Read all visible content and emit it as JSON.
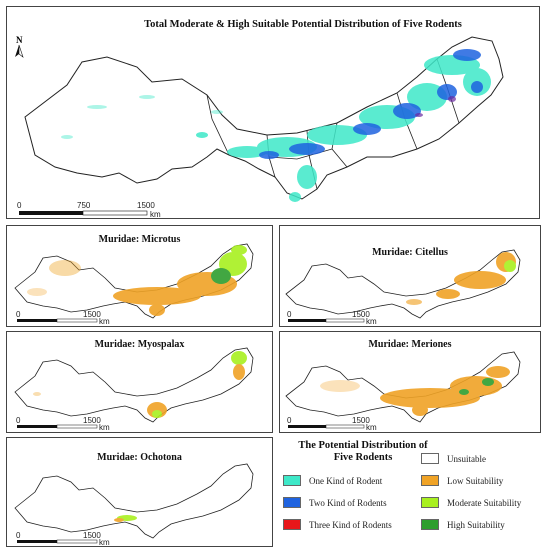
{
  "main_map": {
    "title": "Total Moderate & High Suitable Potential Distribution of Five Rodents",
    "north_label": "N",
    "scale_labels": [
      "0",
      "750",
      "1500"
    ],
    "scale_unit": "km"
  },
  "panels": [
    {
      "id": "microtus",
      "title": "Muridae: Microtus",
      "scale_labels": [
        "0",
        "1500"
      ],
      "scale_unit": "km"
    },
    {
      "id": "citellus",
      "title": "Muridae: Citellus",
      "scale_labels": [
        "0",
        "1500"
      ],
      "scale_unit": "km"
    },
    {
      "id": "myospalax",
      "title": "Muridae: Myospalax",
      "scale_labels": [
        "0",
        "1500"
      ],
      "scale_unit": "km"
    },
    {
      "id": "meriones",
      "title": "Muridae: Meriones",
      "scale_labels": [
        "0",
        "1500"
      ],
      "scale_unit": "km"
    },
    {
      "id": "ochotona",
      "title": "Muridae: Ochotona",
      "scale_labels": [
        "0",
        "1500"
      ],
      "scale_unit": "km"
    }
  ],
  "legend": {
    "title_line1": "The Potential Distribution of",
    "title_line2": "Five Rodents",
    "rodent_items": [
      {
        "label": "One Kind of Rodent",
        "color": "#3ee8c8"
      },
      {
        "label": "Two Kind of Rodents",
        "color": "#1f63e0"
      },
      {
        "label": "Three Kind of Rodents",
        "color": "#e8161a"
      }
    ],
    "suitability_items": [
      {
        "label": "Unsuitable",
        "color": "#ffffff"
      },
      {
        "label": "Low Suitability",
        "color": "#f0a326"
      },
      {
        "label": "Moderate Suitability",
        "color": "#a8f020"
      },
      {
        "label": "High Suitability",
        "color": "#2e9e2e"
      }
    ]
  }
}
